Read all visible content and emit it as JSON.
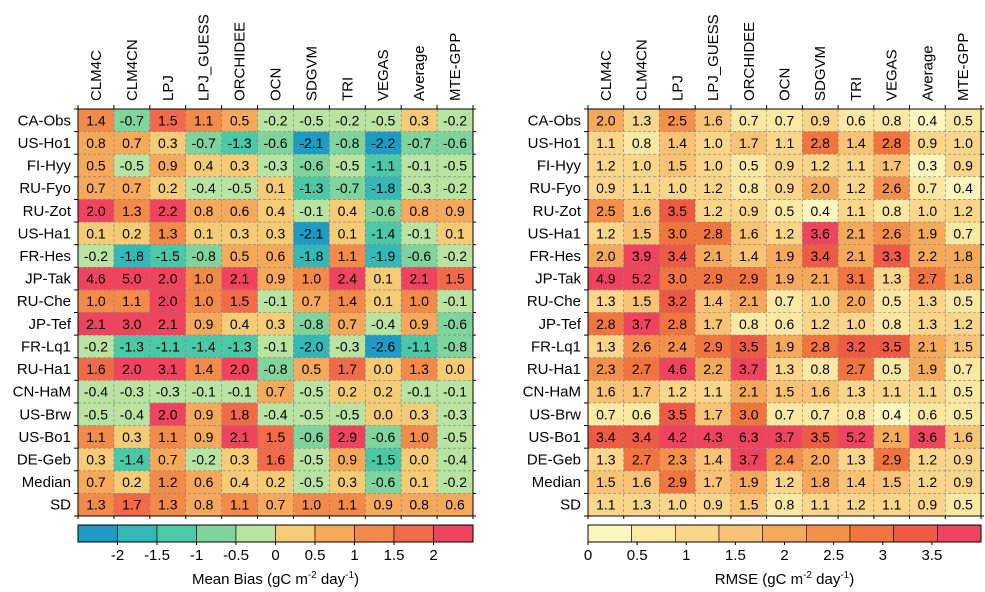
{
  "chart_data": [
    {
      "type": "heatmap",
      "title": "",
      "rows": [
        "CA-Obs",
        "US-Ho1",
        "FI-Hyy",
        "RU-Fyo",
        "RU-Zot",
        "US-Ha1",
        "FR-Hes",
        "JP-Tak",
        "RU-Che",
        "JP-Tef",
        "FR-Lq1",
        "RU-Ha1",
        "CN-HaM",
        "US-Brw",
        "US-Bo1",
        "DE-Geb",
        "Median",
        "SD"
      ],
      "columns": [
        "CLM4C",
        "CLM4CN",
        "LPJ",
        "LPJ_GUESS",
        "ORCHIDEE",
        "OCN",
        "SDGVM",
        "TRI",
        "VEGAS",
        "Average",
        "MTE-GPP"
      ],
      "values": [
        [
          1.4,
          -0.7,
          1.5,
          1.1,
          0.5,
          -0.2,
          -0.5,
          -0.2,
          -0.5,
          0.3,
          -0.2
        ],
        [
          0.8,
          0.7,
          0.3,
          -0.7,
          -1.3,
          -0.6,
          -2.1,
          -0.8,
          -2.2,
          -0.7,
          -0.6
        ],
        [
          0.5,
          -0.5,
          0.9,
          0.4,
          0.3,
          -0.3,
          -0.6,
          -0.5,
          -1.1,
          -0.1,
          -0.5
        ],
        [
          0.7,
          0.7,
          0.2,
          -0.4,
          -0.5,
          0.1,
          -1.3,
          -0.7,
          -1.8,
          -0.3,
          -0.2
        ],
        [
          2.0,
          1.3,
          2.2,
          0.8,
          0.6,
          0.4,
          -0.1,
          0.4,
          -0.6,
          0.8,
          0.9
        ],
        [
          0.1,
          0.2,
          1.3,
          0.1,
          0.3,
          0.3,
          -2.1,
          0.1,
          -1.4,
          -0.1,
          0.1
        ],
        [
          -0.2,
          -1.8,
          -1.5,
          -0.8,
          0.5,
          0.6,
          -1.8,
          1.1,
          -1.9,
          -0.6,
          -0.2
        ],
        [
          4.6,
          5.0,
          2.0,
          1.0,
          2.1,
          0.9,
          1.0,
          2.4,
          0.1,
          2.1,
          1.5
        ],
        [
          1.0,
          1.1,
          2.0,
          1.0,
          1.5,
          -0.1,
          0.7,
          1.4,
          0.1,
          1.0,
          -0.1
        ],
        [
          2.1,
          3.0,
          2.1,
          0.9,
          0.4,
          0.3,
          -0.8,
          0.7,
          -0.4,
          0.9,
          -0.6
        ],
        [
          -0.2,
          -1.3,
          -1.1,
          -1.4,
          -1.3,
          -0.1,
          -2.0,
          -0.3,
          -2.6,
          -1.1,
          -0.8
        ],
        [
          1.6,
          2.0,
          3.1,
          1.4,
          2.0,
          -0.8,
          0.5,
          1.7,
          -0.0,
          1.3,
          -0.0
        ],
        [
          -0.4,
          -0.3,
          -0.3,
          -0.1,
          -0.1,
          0.7,
          -0.5,
          0.2,
          0.2,
          -0.1,
          -0.1
        ],
        [
          -0.5,
          -0.4,
          2.0,
          0.9,
          1.8,
          -0.4,
          -0.5,
          -0.5,
          0.0,
          0.3,
          -0.3
        ],
        [
          1.1,
          0.3,
          1.1,
          0.9,
          2.1,
          1.5,
          -0.6,
          2.9,
          -0.6,
          1.0,
          -0.5
        ],
        [
          0.3,
          -1.4,
          0.7,
          -0.2,
          0.3,
          1.6,
          -0.5,
          0.9,
          -1.5,
          0.0,
          -0.4
        ],
        [
          0.7,
          0.2,
          1.2,
          0.6,
          0.4,
          0.2,
          -0.5,
          0.3,
          -0.6,
          0.1,
          -0.2
        ],
        [
          1.3,
          1.7,
          1.3,
          0.8,
          1.1,
          0.7,
          1.0,
          1.1,
          0.9,
          0.8,
          0.6
        ]
      ],
      "colorbar": {
        "ticks": [
          "-2",
          "-1.5",
          "-1",
          "-0.5",
          "0",
          "0.5",
          "1",
          "1.5",
          "2"
        ],
        "range": [
          -2.5,
          2.5
        ],
        "colors": [
          "#1d9bc4",
          "#34b8b7",
          "#4bc8a6",
          "#7fd49d",
          "#b8e3a0",
          "#f6cb75",
          "#f6a95a",
          "#f48a4a",
          "#f36a4b",
          "#f0445e"
        ]
      },
      "colorbar_label": {
        "pre": "Mean Bias (gC m",
        "sup1": "-2",
        "mid": " day",
        "sup2": "-1",
        "post": ")"
      }
    },
    {
      "type": "heatmap",
      "title": "",
      "rows": [
        "CA-Obs",
        "US-Ho1",
        "FI-Hyy",
        "RU-Fyo",
        "RU-Zot",
        "US-Ha1",
        "FR-Hes",
        "JP-Tak",
        "RU-Che",
        "JP-Tef",
        "FR-Lq1",
        "RU-Ha1",
        "CN-HaM",
        "US-Brw",
        "US-Bo1",
        "DE-Geb",
        "Median",
        "SD"
      ],
      "columns": [
        "CLM4C",
        "CLM4CN",
        "LPJ",
        "LPJ_GUESS",
        "ORCHIDEE",
        "OCN",
        "SDGVM",
        "TRI",
        "VEGAS",
        "Average",
        "MTE-GPP"
      ],
      "values": [
        [
          2.0,
          1.3,
          2.5,
          1.6,
          0.7,
          0.7,
          0.9,
          0.6,
          0.8,
          0.4,
          0.5
        ],
        [
          1.1,
          0.8,
          1.4,
          1.0,
          1.7,
          1.1,
          2.8,
          1.4,
          2.8,
          0.9,
          1.0
        ],
        [
          1.2,
          1.0,
          1.5,
          1.0,
          0.5,
          0.9,
          1.2,
          1.1,
          1.7,
          0.3,
          0.9
        ],
        [
          0.9,
          1.1,
          1.0,
          1.2,
          0.8,
          0.9,
          2.0,
          1.2,
          2.6,
          0.7,
          0.4
        ],
        [
          2.5,
          1.6,
          3.5,
          1.2,
          0.9,
          0.5,
          0.4,
          1.1,
          0.8,
          1.0,
          1.2
        ],
        [
          1.2,
          1.5,
          3.0,
          2.8,
          1.6,
          1.2,
          3.6,
          2.1,
          2.6,
          1.9,
          0.7
        ],
        [
          2.0,
          3.9,
          3.4,
          2.1,
          1.4,
          1.9,
          3.4,
          2.1,
          3.3,
          2.2,
          1.8
        ],
        [
          4.9,
          5.2,
          3.0,
          2.9,
          2.9,
          1.9,
          2.1,
          3.1,
          1.3,
          2.7,
          1.8
        ],
        [
          1.3,
          1.5,
          3.2,
          1.4,
          2.1,
          0.7,
          1.0,
          2.0,
          0.5,
          1.3,
          0.5
        ],
        [
          2.8,
          3.7,
          2.8,
          1.7,
          0.8,
          0.6,
          1.2,
          1.0,
          0.8,
          1.3,
          1.2
        ],
        [
          1.3,
          2.6,
          2.4,
          2.9,
          3.5,
          1.9,
          2.8,
          3.2,
          3.5,
          2.1,
          1.5
        ],
        [
          2.3,
          2.7,
          4.6,
          2.2,
          3.7,
          1.3,
          0.8,
          2.7,
          0.5,
          1.9,
          0.7
        ],
        [
          1.6,
          1.7,
          1.2,
          1.1,
          2.1,
          1.5,
          1.6,
          1.3,
          1.1,
          1.1,
          0.5
        ],
        [
          0.7,
          0.6,
          3.5,
          1.7,
          3.0,
          0.7,
          0.7,
          0.8,
          0.4,
          0.6,
          0.5
        ],
        [
          3.4,
          3.4,
          4.2,
          4.3,
          6.3,
          3.7,
          3.5,
          5.2,
          2.1,
          3.6,
          1.6
        ],
        [
          1.3,
          2.7,
          2.3,
          1.4,
          3.7,
          2.4,
          2.0,
          1.3,
          2.9,
          1.2,
          0.9
        ],
        [
          1.5,
          1.6,
          2.9,
          1.7,
          1.9,
          1.2,
          1.8,
          1.4,
          1.5,
          1.2,
          0.9
        ],
        [
          1.1,
          1.3,
          1.0,
          0.9,
          1.5,
          0.8,
          1.1,
          1.2,
          1.1,
          0.9,
          0.5
        ]
      ],
      "colorbar": {
        "ticks": [
          "0",
          "0.5",
          "1",
          "1.5",
          "2",
          "2.5",
          "3",
          "3.5"
        ],
        "range": [
          0,
          4
        ],
        "colors": [
          "#fff6bf",
          "#fde8a3",
          "#fbd68a",
          "#f9c274",
          "#f6a95a",
          "#f48f4c",
          "#f2743f",
          "#ef5a45",
          "#f0445e"
        ]
      },
      "colorbar_label": {
        "pre": "RMSE (gC m",
        "sup1": "-2",
        "mid": " day",
        "sup2": "-1",
        "post": ")"
      }
    }
  ]
}
